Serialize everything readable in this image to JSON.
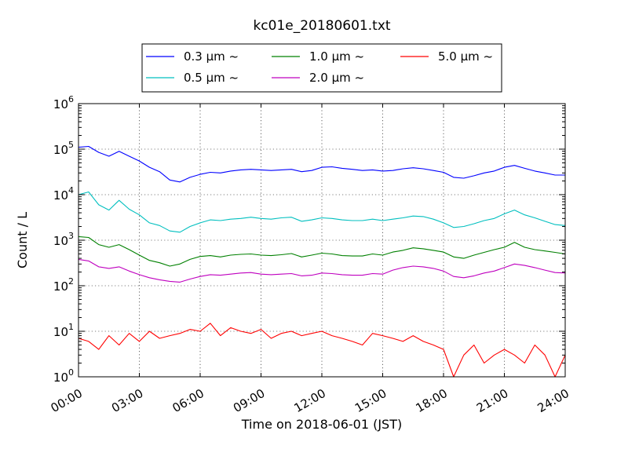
{
  "chart_data": {
    "type": "line",
    "title": "kc01e_20180601.txt",
    "xlabel": "Time on 2018-06-01 (JST)",
    "ylabel": "Count / L",
    "y_scale": "log",
    "xlim": [
      "00:00",
      "24:00"
    ],
    "ylim": [
      1,
      1000000
    ],
    "grid": true,
    "legend_position": "top-center",
    "x_ticks": [
      "00:00",
      "03:00",
      "06:00",
      "09:00",
      "12:00",
      "15:00",
      "18:00",
      "21:00",
      "24:00"
    ],
    "y_ticks": [
      {
        "base": "10",
        "exp": "0"
      },
      {
        "base": "10",
        "exp": "1"
      },
      {
        "base": "10",
        "exp": "2"
      },
      {
        "base": "10",
        "exp": "3"
      },
      {
        "base": "10",
        "exp": "4"
      },
      {
        "base": "10",
        "exp": "5"
      },
      {
        "base": "10",
        "exp": "6"
      }
    ],
    "x": [
      "00:00",
      "00:30",
      "01:00",
      "01:30",
      "02:00",
      "02:30",
      "03:00",
      "03:30",
      "04:00",
      "04:30",
      "05:00",
      "05:30",
      "06:00",
      "06:30",
      "07:00",
      "07:30",
      "08:00",
      "08:30",
      "09:00",
      "09:30",
      "10:00",
      "10:30",
      "11:00",
      "11:30",
      "12:00",
      "12:30",
      "13:00",
      "13:30",
      "14:00",
      "14:30",
      "15:00",
      "15:30",
      "16:00",
      "16:30",
      "17:00",
      "17:30",
      "18:00",
      "18:30",
      "19:00",
      "19:30",
      "20:00",
      "20:30",
      "21:00",
      "21:30",
      "22:00",
      "22:30",
      "23:00",
      "23:30",
      "24:00"
    ],
    "series": [
      {
        "name": "0.3 μm ~",
        "color": "#0000ff",
        "values": [
          110000,
          115000,
          85000,
          70000,
          90000,
          70000,
          55000,
          40000,
          32000,
          21000,
          19000,
          24000,
          28000,
          31000,
          30000,
          33000,
          35000,
          36000,
          35000,
          34000,
          35000,
          36000,
          32000,
          34000,
          40000,
          41000,
          38000,
          36000,
          34000,
          35000,
          33000,
          34000,
          37000,
          39000,
          37000,
          34000,
          31000,
          24000,
          23000,
          26000,
          30000,
          33000,
          40000,
          44000,
          38000,
          33000,
          30000,
          27000,
          27000
        ]
      },
      {
        "name": "0.5 μm ~",
        "color": "#00bfbf",
        "values": [
          10000,
          11500,
          6000,
          4600,
          7500,
          4800,
          3600,
          2400,
          2100,
          1600,
          1500,
          2000,
          2400,
          2800,
          2700,
          2900,
          3000,
          3200,
          3000,
          2900,
          3100,
          3200,
          2600,
          2800,
          3100,
          3000,
          2800,
          2700,
          2700,
          2900,
          2700,
          2900,
          3100,
          3400,
          3300,
          2900,
          2400,
          1900,
          2000,
          2300,
          2700,
          3000,
          3800,
          4600,
          3600,
          3100,
          2600,
          2200,
          2100
        ]
      },
      {
        "name": "1.0 μm ~",
        "color": "#008000",
        "values": [
          1200,
          1150,
          800,
          700,
          800,
          620,
          470,
          360,
          320,
          270,
          300,
          380,
          440,
          460,
          430,
          470,
          490,
          500,
          470,
          460,
          480,
          510,
          430,
          470,
          520,
          500,
          460,
          450,
          450,
          500,
          470,
          550,
          600,
          680,
          650,
          600,
          550,
          430,
          400,
          470,
          540,
          620,
          700,
          900,
          700,
          620,
          580,
          540,
          500
        ]
      },
      {
        "name": "2.0 μm ~",
        "color": "#bf00bf",
        "values": [
          380,
          350,
          260,
          240,
          260,
          210,
          175,
          150,
          135,
          125,
          120,
          140,
          160,
          175,
          170,
          180,
          190,
          195,
          180,
          175,
          180,
          185,
          165,
          170,
          190,
          185,
          175,
          170,
          170,
          185,
          180,
          220,
          250,
          270,
          260,
          240,
          210,
          160,
          150,
          165,
          190,
          210,
          250,
          300,
          280,
          250,
          220,
          195,
          190
        ]
      },
      {
        "name": "5.0 μm ~",
        "color": "#ff0000",
        "values": [
          7,
          6,
          4,
          8,
          5,
          9,
          6,
          10,
          7,
          8,
          9,
          11,
          10,
          15,
          8,
          12,
          10,
          9,
          11,
          7,
          9,
          10,
          8,
          9,
          10,
          8,
          7,
          6,
          5,
          9,
          8,
          7,
          6,
          8,
          6,
          5,
          4,
          1,
          3,
          5,
          2,
          3,
          4,
          3,
          2,
          5,
          3,
          1,
          3
        ]
      }
    ]
  }
}
